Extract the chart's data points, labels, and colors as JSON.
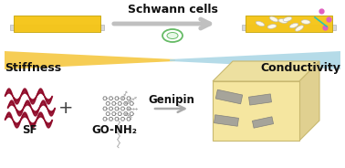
{
  "bg_color": "#ffffff",
  "sf_label": "SF",
  "go_label": "GO-NH₂",
  "genipin_label": "Genipin",
  "stiffness_label": "Stiffness",
  "conductivity_label": "Conductivity",
  "schwann_label": "Schwann cells",
  "wave_color": "#8b0020",
  "triangle_yellow": "#f5c842",
  "triangle_blue": "#add8e6",
  "hydrogel_face": "#f5e6a0",
  "hydrogel_top": "#ede0a0",
  "hydrogel_right": "#e0d090",
  "hydrogel_edge": "#c8b870",
  "go_sheet_color": "#999999",
  "go_sheet_edge": "#777777",
  "scaffold_yellow": "#f5c518",
  "scaffold_gray": "#cccccc",
  "scaffold_base": "#d0d0d0",
  "cell_outer_color": "#66bb66",
  "cell_inner_color": "#e8f8e8",
  "pink_dot": "#e060c0",
  "teal_line": "#30c0b0",
  "fig_width": 3.78,
  "fig_height": 1.84,
  "dpi": 100
}
